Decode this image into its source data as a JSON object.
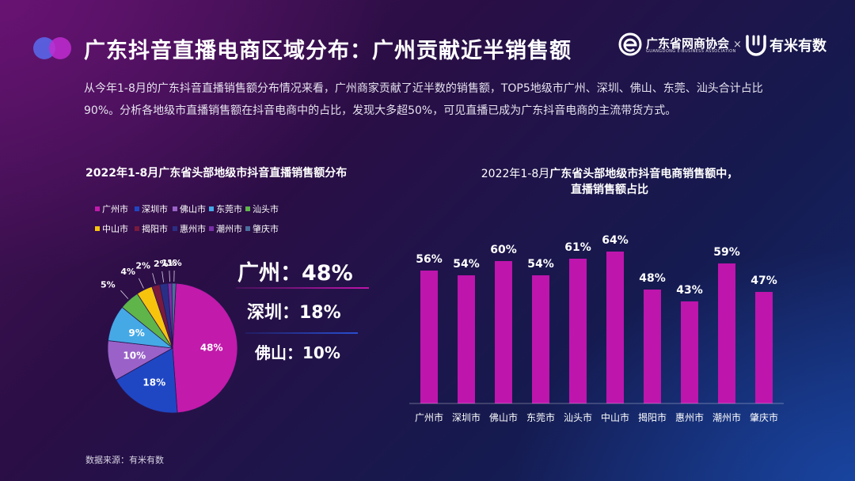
{
  "header": {
    "title": "广东抖音直播电商区域分布：广州贡献近半销售额"
  },
  "logos": {
    "org_name": "广东省网商协会",
    "org_name_en": "GUANGDONG E-BUSINESS ASSOCIATION",
    "separator": "×",
    "partner_name": "有米有数"
  },
  "intro": "从今年1-8月的广东抖音直播销售额分布情况来看，广州商家贡献了近半数的销售额，TOP5地级市广州、深圳、佛山、东莞、汕头合计占比90%。分析各地级市直播销售额在抖音电商中的占比，发现大多超50%，可见直播已成为广东抖音电商的主流带货方式。",
  "highlights": {
    "h1": "广州：48%",
    "h2": "深圳：18%",
    "h3": "佛山：10%"
  },
  "source": "数据来源：有米有数",
  "colors": {
    "guangzhou": "#c21aab",
    "shenzhen": "#1f47c4",
    "foshan": "#9a62c8",
    "dongguan": "#45a9e6",
    "shantou": "#5fb54a",
    "zhongshan": "#f7c40d",
    "jieyang": "#7a1a3c",
    "huizhou": "#2a2f86",
    "chaozhou": "#7b2fa8",
    "zhaoqing": "#4a6f9c",
    "bar": "#be15ad"
  },
  "chart_data": [
    {
      "type": "pie",
      "title": "2022年1-8月广东省头部地级市抖音直播销售额分布",
      "legend_position": "top",
      "categories": [
        "广州市",
        "深圳市",
        "佛山市",
        "东莞市",
        "汕头市",
        "中山市",
        "揭阳市",
        "惠州市",
        "潮州市",
        "肇庆市"
      ],
      "values": [
        48,
        18,
        10,
        9,
        5,
        4,
        2,
        2,
        1,
        1
      ],
      "value_labels": [
        "48%",
        "18%",
        "10%",
        "9%",
        "5%",
        "4%",
        "2%",
        "2%",
        "1%",
        "1%"
      ]
    },
    {
      "type": "bar",
      "title_line1_prefix": "2022年1-8月",
      "title_line1_bold": "广东省头部地级市抖音电商销售额中，",
      "title_line2": "直播销售额占比",
      "categories": [
        "广州市",
        "深圳市",
        "佛山市",
        "东莞市",
        "汕头市",
        "中山市",
        "揭阳市",
        "惠州市",
        "潮州市",
        "肇庆市"
      ],
      "values": [
        56,
        54,
        60,
        54,
        61,
        64,
        48,
        43,
        59,
        47
      ],
      "value_labels": [
        "56%",
        "54%",
        "60%",
        "54%",
        "61%",
        "64%",
        "48%",
        "43%",
        "59%",
        "47%"
      ],
      "ylim": [
        0,
        70
      ],
      "grid": false
    }
  ]
}
